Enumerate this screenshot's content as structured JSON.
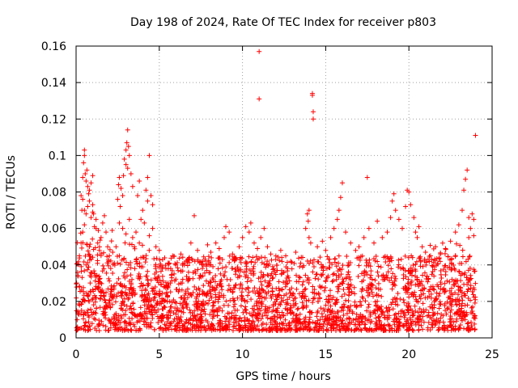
{
  "chart_data": {
    "type": "scatter",
    "title": "Day 198 of 2024, Rate Of TEC Index for receiver p803",
    "xlabel": "GPS time / hours",
    "ylabel": "ROTI / TECUs",
    "xlim": [
      0,
      25
    ],
    "ylim": [
      0,
      0.16
    ],
    "x_ticks": [
      0,
      5,
      10,
      15,
      20,
      25
    ],
    "x_tick_labels": [
      "0",
      "5",
      "10",
      "15",
      "20",
      "25"
    ],
    "y_ticks": [
      0,
      0.02,
      0.04,
      0.06,
      0.08,
      0.1,
      0.12,
      0.14,
      0.16
    ],
    "y_tick_labels": [
      "0",
      "0.02",
      "0.04",
      "0.06",
      "0.08",
      "0.1",
      "0.12",
      "0.14",
      "0.16"
    ],
    "grid": true,
    "marker": "+",
    "marker_color": "#ff0000",
    "series": [
      {
        "name": "ROTI",
        "points": [
          [
            0.1,
            0.034
          ],
          [
            0.2,
            0.045
          ],
          [
            0.3,
            0.052
          ],
          [
            0.4,
            0.058
          ],
          [
            0.5,
            0.062
          ],
          [
            0.5,
            0.07
          ],
          [
            0.6,
            0.068
          ],
          [
            0.7,
            0.072
          ],
          [
            0.8,
            0.075
          ],
          [
            0.9,
            0.066
          ],
          [
            1.0,
            0.069
          ],
          [
            1.1,
            0.061
          ],
          [
            0.2,
            0.028
          ],
          [
            0.6,
            0.04
          ],
          [
            0.8,
            0.05
          ],
          [
            0.3,
            0.078
          ],
          [
            0.4,
            0.088
          ],
          [
            0.45,
            0.096
          ],
          [
            0.5,
            0.103
          ],
          [
            0.5,
            0.1
          ],
          [
            0.55,
            0.09
          ],
          [
            0.6,
            0.086
          ],
          [
            0.7,
            0.083
          ],
          [
            0.75,
            0.079
          ],
          [
            0.8,
            0.081
          ],
          [
            0.9,
            0.085
          ],
          [
            1.0,
            0.089
          ],
          [
            0.4,
            0.076
          ],
          [
            0.35,
            0.07
          ],
          [
            0.65,
            0.092
          ],
          [
            1.2,
            0.06
          ],
          [
            1.3,
            0.052
          ],
          [
            1.4,
            0.048
          ],
          [
            1.5,
            0.055
          ],
          [
            1.6,
            0.063
          ],
          [
            1.7,
            0.067
          ],
          [
            1.8,
            0.058
          ],
          [
            1.9,
            0.05
          ],
          [
            2.0,
            0.045
          ],
          [
            1.0,
            0.073
          ],
          [
            1.05,
            0.068
          ],
          [
            1.2,
            0.065
          ],
          [
            2.2,
            0.047
          ],
          [
            2.3,
            0.041
          ],
          [
            2.4,
            0.05
          ],
          [
            2.6,
            0.045
          ],
          [
            2.7,
            0.082
          ],
          [
            2.8,
            0.078
          ],
          [
            2.85,
            0.089
          ],
          [
            2.9,
            0.098
          ],
          [
            3.0,
            0.103
          ],
          [
            3.05,
            0.107
          ],
          [
            3.1,
            0.114
          ],
          [
            3.15,
            0.105
          ],
          [
            3.2,
            0.1
          ],
          [
            3.3,
            0.09
          ],
          [
            3.4,
            0.083
          ],
          [
            3.0,
            0.095
          ],
          [
            3.1,
            0.093
          ],
          [
            2.6,
            0.088
          ],
          [
            2.5,
            0.076
          ],
          [
            2.55,
            0.084
          ],
          [
            2.65,
            0.072
          ],
          [
            2.6,
            0.063
          ],
          [
            2.8,
            0.06
          ],
          [
            3.0,
            0.057
          ],
          [
            3.2,
            0.065
          ],
          [
            3.4,
            0.055
          ],
          [
            3.5,
            0.05
          ],
          [
            3.6,
            0.058
          ],
          [
            3.8,
            0.052
          ],
          [
            3.9,
            0.065
          ],
          [
            4.0,
            0.07
          ],
          [
            3.7,
            0.078
          ],
          [
            3.8,
            0.086
          ],
          [
            4.2,
            0.081
          ],
          [
            4.3,
            0.088
          ],
          [
            4.4,
            0.1
          ],
          [
            4.5,
            0.078
          ],
          [
            4.6,
            0.073
          ],
          [
            4.3,
            0.075
          ],
          [
            4.1,
            0.063
          ],
          [
            4.4,
            0.056
          ],
          [
            4.6,
            0.06
          ],
          [
            4.8,
            0.05
          ],
          [
            5.0,
            0.048
          ],
          [
            5.2,
            0.043
          ],
          [
            5.4,
            0.038
          ],
          [
            5.6,
            0.041
          ],
          [
            5.8,
            0.045
          ],
          [
            6.0,
            0.04
          ],
          [
            6.3,
            0.046
          ],
          [
            6.5,
            0.041
          ],
          [
            6.7,
            0.043
          ],
          [
            6.9,
            0.052
          ],
          [
            7.1,
            0.067
          ],
          [
            7.3,
            0.048
          ],
          [
            7.6,
            0.042
          ],
          [
            7.9,
            0.051
          ],
          [
            8.1,
            0.047
          ],
          [
            8.4,
            0.052
          ],
          [
            8.6,
            0.049
          ],
          [
            8.9,
            0.055
          ],
          [
            9.0,
            0.061
          ],
          [
            9.2,
            0.058
          ],
          [
            9.4,
            0.046
          ],
          [
            9.6,
            0.044
          ],
          [
            9.8,
            0.05
          ],
          [
            10.0,
            0.055
          ],
          [
            10.2,
            0.061
          ],
          [
            10.4,
            0.058
          ],
          [
            10.5,
            0.063
          ],
          [
            10.7,
            0.052
          ],
          [
            10.9,
            0.049
          ],
          [
            11.0,
            0.157
          ],
          [
            11.0,
            0.131
          ],
          [
            11.1,
            0.055
          ],
          [
            11.3,
            0.06
          ],
          [
            11.5,
            0.05
          ],
          [
            11.7,
            0.046
          ],
          [
            12.0,
            0.043
          ],
          [
            12.3,
            0.048
          ],
          [
            12.6,
            0.045
          ],
          [
            12.9,
            0.042
          ],
          [
            13.2,
            0.047
          ],
          [
            13.5,
            0.041
          ],
          [
            13.8,
            0.06
          ],
          [
            13.9,
            0.068
          ],
          [
            14.0,
            0.07
          ],
          [
            13.95,
            0.064
          ],
          [
            14.0,
            0.055
          ],
          [
            14.1,
            0.052
          ],
          [
            14.2,
            0.134
          ],
          [
            14.2,
            0.133
          ],
          [
            14.25,
            0.124
          ],
          [
            14.25,
            0.12
          ],
          [
            14.5,
            0.05
          ],
          [
            14.8,
            0.053
          ],
          [
            15.0,
            0.048
          ],
          [
            15.3,
            0.055
          ],
          [
            15.5,
            0.06
          ],
          [
            15.7,
            0.065
          ],
          [
            15.9,
            0.077
          ],
          [
            16.0,
            0.085
          ],
          [
            15.8,
            0.07
          ],
          [
            16.2,
            0.058
          ],
          [
            16.5,
            0.052
          ],
          [
            16.8,
            0.048
          ],
          [
            17.0,
            0.05
          ],
          [
            17.3,
            0.055
          ],
          [
            17.5,
            0.088
          ],
          [
            17.6,
            0.06
          ],
          [
            17.9,
            0.052
          ],
          [
            18.1,
            0.064
          ],
          [
            18.4,
            0.055
          ],
          [
            18.7,
            0.058
          ],
          [
            18.9,
            0.066
          ],
          [
            19.0,
            0.075
          ],
          [
            19.1,
            0.079
          ],
          [
            19.2,
            0.07
          ],
          [
            19.4,
            0.065
          ],
          [
            19.6,
            0.06
          ],
          [
            19.8,
            0.072
          ],
          [
            19.9,
            0.081
          ],
          [
            20.0,
            0.08
          ],
          [
            20.1,
            0.073
          ],
          [
            20.3,
            0.066
          ],
          [
            20.4,
            0.058
          ],
          [
            20.5,
            0.055
          ],
          [
            20.6,
            0.061
          ],
          [
            20.8,
            0.05
          ],
          [
            21.0,
            0.047
          ],
          [
            21.3,
            0.045
          ],
          [
            21.6,
            0.05
          ],
          [
            21.9,
            0.046
          ],
          [
            22.2,
            0.049
          ],
          [
            22.5,
            0.053
          ],
          [
            22.8,
            0.058
          ],
          [
            23.0,
            0.062
          ],
          [
            23.2,
            0.07
          ],
          [
            23.3,
            0.081
          ],
          [
            23.4,
            0.087
          ],
          [
            23.5,
            0.092
          ],
          [
            23.6,
            0.066
          ],
          [
            23.7,
            0.06
          ],
          [
            23.8,
            0.068
          ],
          [
            23.9,
            0.065
          ],
          [
            24.0,
            0.111
          ],
          [
            23.9,
            0.056
          ],
          [
            23.6,
            0.055
          ]
        ]
      }
    ],
    "dense_band": {
      "description_free": true,
      "x_range": [
        0,
        24
      ],
      "typical_min": 0.004,
      "typical_max": 0.045,
      "count": 2600,
      "seed": 198
    }
  }
}
